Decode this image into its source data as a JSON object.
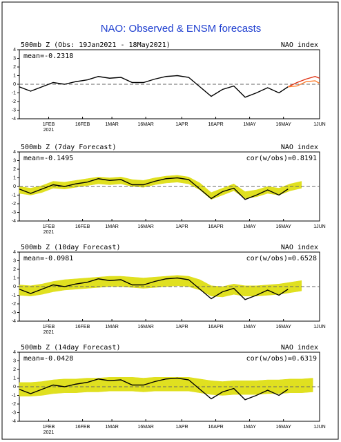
{
  "title": "NAO: Observed & ENSM forecasts",
  "chart_data": [
    {
      "type": "line",
      "title": "500mb Z (Obs: 19Jan2021 - 18May2021)",
      "right_label": "NAO index",
      "mean_label": "mean=-0.2318",
      "xlim": [
        "2021-01-19",
        "2021-06-01"
      ],
      "ylim": [
        -4,
        4
      ],
      "yticks": [
        4,
        3,
        2,
        1,
        0,
        -1,
        -2,
        -3,
        -4
      ],
      "zero_line": true,
      "xticks": [
        {
          "value": "2021-02-01",
          "label": "1FEB"
        },
        {
          "value": "2021-02-16",
          "label": "16FEB"
        },
        {
          "value": "2021-03-01",
          "label": "1MAR"
        },
        {
          "value": "2021-03-16",
          "label": "16MAR"
        },
        {
          "value": "2021-04-01",
          "label": "1APR"
        },
        {
          "value": "2021-04-16",
          "label": "16APR"
        },
        {
          "value": "2021-05-01",
          "label": "1MAY"
        },
        {
          "value": "2021-05-16",
          "label": "16MAY"
        },
        {
          "value": "2021-06-01",
          "label": "1JUN"
        }
      ],
      "year_label": "2021",
      "series": [
        {
          "color": "#000000",
          "x": [
            "2021-01-19",
            "2021-01-24",
            "2021-01-29",
            "2021-02-03",
            "2021-02-08",
            "2021-02-13",
            "2021-02-18",
            "2021-02-23",
            "2021-02-28",
            "2021-03-05",
            "2021-03-10",
            "2021-03-15",
            "2021-03-20",
            "2021-03-25",
            "2021-03-30",
            "2021-04-04",
            "2021-04-09",
            "2021-04-14",
            "2021-04-19",
            "2021-04-24",
            "2021-04-29",
            "2021-05-04",
            "2021-05-09",
            "2021-05-14",
            "2021-05-18"
          ],
          "values": [
            -0.3,
            -0.8,
            -0.3,
            0.2,
            0.0,
            0.3,
            0.5,
            0.9,
            0.7,
            0.8,
            0.2,
            0.2,
            0.6,
            0.9,
            1.0,
            0.8,
            -0.3,
            -1.4,
            -0.6,
            -0.2,
            -1.5,
            -1.0,
            -0.4,
            -1.0,
            -0.3
          ]
        },
        {
          "color": "#e03010",
          "x": [
            "2021-05-18",
            "2021-05-22",
            "2021-05-26",
            "2021-05-30",
            "2021-06-01"
          ],
          "values": [
            -0.3,
            0.2,
            0.6,
            0.9,
            0.7
          ]
        },
        {
          "color": "#ff8030",
          "x": [
            "2021-05-18",
            "2021-05-22",
            "2021-05-26",
            "2021-05-30",
            "2021-06-01"
          ],
          "values": [
            -0.3,
            -0.2,
            0.3,
            0.4,
            0.1
          ]
        }
      ]
    },
    {
      "type": "line",
      "title": "500mb Z (7day Forecast)",
      "right_label": "NAO index",
      "mean_label": "mean=-0.1495",
      "cor_label": "cor(w/obs)=0.8191",
      "xlim": [
        "2021-01-19",
        "2021-06-01"
      ],
      "ylim": [
        -4,
        4
      ],
      "yticks": [
        4,
        3,
        2,
        1,
        0,
        -1,
        -2,
        -3,
        -4
      ],
      "zero_line": true,
      "xticks": [
        {
          "value": "2021-02-01",
          "label": "1FEB"
        },
        {
          "value": "2021-02-16",
          "label": "16FEB"
        },
        {
          "value": "2021-03-01",
          "label": "1MAR"
        },
        {
          "value": "2021-03-16",
          "label": "16MAR"
        },
        {
          "value": "2021-04-01",
          "label": "1APR"
        },
        {
          "value": "2021-04-16",
          "label": "16APR"
        },
        {
          "value": "2021-05-01",
          "label": "1MAY"
        },
        {
          "value": "2021-05-16",
          "label": "16MAY"
        },
        {
          "value": "2021-06-01",
          "label": "1JUN"
        }
      ],
      "year_label": "2021",
      "band": {
        "color": "#e0e020",
        "x": [
          "2021-01-19",
          "2021-01-24",
          "2021-01-29",
          "2021-02-03",
          "2021-02-08",
          "2021-02-13",
          "2021-02-18",
          "2021-02-23",
          "2021-02-28",
          "2021-03-05",
          "2021-03-10",
          "2021-03-15",
          "2021-03-20",
          "2021-03-25",
          "2021-03-30",
          "2021-04-04",
          "2021-04-09",
          "2021-04-14",
          "2021-04-19",
          "2021-04-24",
          "2021-04-29",
          "2021-05-04",
          "2021-05-09",
          "2021-05-14",
          "2021-05-19",
          "2021-05-24"
        ],
        "upper": [
          0.0,
          -0.2,
          0.1,
          0.6,
          0.5,
          0.7,
          0.9,
          1.1,
          1.0,
          1.1,
          0.8,
          0.7,
          1.0,
          1.2,
          1.3,
          1.1,
          0.4,
          -0.7,
          -0.2,
          0.3,
          -0.6,
          -0.4,
          0.0,
          -0.2,
          0.3,
          0.6
        ],
        "lower": [
          -0.8,
          -1.0,
          -0.7,
          -0.2,
          -0.3,
          -0.1,
          0.1,
          0.3,
          0.2,
          0.3,
          0.0,
          -0.1,
          0.2,
          0.4,
          0.5,
          0.3,
          -0.4,
          -1.5,
          -1.0,
          -0.5,
          -1.4,
          -1.2,
          -0.8,
          -1.0,
          -0.5,
          -0.2
        ]
      },
      "series": [
        {
          "color": "#000000",
          "x": [
            "2021-01-19",
            "2021-01-24",
            "2021-01-29",
            "2021-02-03",
            "2021-02-08",
            "2021-02-13",
            "2021-02-18",
            "2021-02-23",
            "2021-02-28",
            "2021-03-05",
            "2021-03-10",
            "2021-03-15",
            "2021-03-20",
            "2021-03-25",
            "2021-03-30",
            "2021-04-04",
            "2021-04-09",
            "2021-04-14",
            "2021-04-19",
            "2021-04-24",
            "2021-04-29",
            "2021-05-04",
            "2021-05-09",
            "2021-05-14",
            "2021-05-18"
          ],
          "values": [
            -0.3,
            -0.8,
            -0.3,
            0.2,
            0.0,
            0.3,
            0.5,
            0.9,
            0.7,
            0.8,
            0.2,
            0.2,
            0.6,
            0.9,
            1.0,
            0.8,
            -0.3,
            -1.4,
            -0.6,
            -0.2,
            -1.5,
            -1.0,
            -0.4,
            -1.0,
            -0.3
          ]
        }
      ]
    },
    {
      "type": "line",
      "title": "500mb Z (10day Forecast)",
      "right_label": "NAO index",
      "mean_label": "mean=-0.0981",
      "cor_label": "cor(w/obs)=0.6528",
      "xlim": [
        "2021-01-19",
        "2021-06-01"
      ],
      "ylim": [
        -4,
        4
      ],
      "yticks": [
        4,
        3,
        2,
        1,
        0,
        -1,
        -2,
        -3,
        -4
      ],
      "zero_line": true,
      "xticks": [
        {
          "value": "2021-02-01",
          "label": "1FEB"
        },
        {
          "value": "2021-02-16",
          "label": "16FEB"
        },
        {
          "value": "2021-03-01",
          "label": "1MAR"
        },
        {
          "value": "2021-03-16",
          "label": "16MAR"
        },
        {
          "value": "2021-04-01",
          "label": "1APR"
        },
        {
          "value": "2021-04-16",
          "label": "16APR"
        },
        {
          "value": "2021-05-01",
          "label": "1MAY"
        },
        {
          "value": "2021-05-16",
          "label": "16MAY"
        },
        {
          "value": "2021-06-01",
          "label": "1JUN"
        }
      ],
      "year_label": "2021",
      "band": {
        "color": "#e0e020",
        "x": [
          "2021-01-19",
          "2021-01-24",
          "2021-01-29",
          "2021-02-03",
          "2021-02-08",
          "2021-02-13",
          "2021-02-18",
          "2021-02-23",
          "2021-02-28",
          "2021-03-05",
          "2021-03-10",
          "2021-03-15",
          "2021-03-20",
          "2021-03-25",
          "2021-03-30",
          "2021-04-04",
          "2021-04-09",
          "2021-04-14",
          "2021-04-19",
          "2021-04-24",
          "2021-04-29",
          "2021-05-04",
          "2021-05-09",
          "2021-05-14",
          "2021-05-19",
          "2021-05-24"
        ],
        "upper": [
          0.2,
          0.1,
          0.3,
          0.6,
          0.8,
          0.9,
          1.0,
          1.1,
          1.2,
          1.2,
          1.1,
          1.0,
          1.1,
          1.2,
          1.3,
          1.2,
          0.8,
          0.1,
          0.0,
          0.3,
          0.1,
          0.1,
          0.2,
          0.3,
          0.5,
          0.7
        ],
        "lower": [
          -1.0,
          -1.1,
          -0.9,
          -0.6,
          -0.4,
          -0.3,
          -0.2,
          -0.1,
          0.0,
          0.0,
          -0.1,
          -0.2,
          -0.1,
          0.0,
          0.1,
          0.0,
          -0.4,
          -1.1,
          -1.2,
          -0.9,
          -1.1,
          -1.1,
          -1.0,
          -0.9,
          -0.7,
          -0.5
        ]
      },
      "series": [
        {
          "color": "#000000",
          "x": [
            "2021-01-19",
            "2021-01-24",
            "2021-01-29",
            "2021-02-03",
            "2021-02-08",
            "2021-02-13",
            "2021-02-18",
            "2021-02-23",
            "2021-02-28",
            "2021-03-05",
            "2021-03-10",
            "2021-03-15",
            "2021-03-20",
            "2021-03-25",
            "2021-03-30",
            "2021-04-04",
            "2021-04-09",
            "2021-04-14",
            "2021-04-19",
            "2021-04-24",
            "2021-04-29",
            "2021-05-04",
            "2021-05-09",
            "2021-05-14",
            "2021-05-18"
          ],
          "values": [
            -0.3,
            -0.8,
            -0.3,
            0.2,
            0.0,
            0.3,
            0.5,
            0.9,
            0.7,
            0.8,
            0.2,
            0.2,
            0.6,
            0.9,
            1.0,
            0.8,
            -0.3,
            -1.4,
            -0.6,
            -0.2,
            -1.5,
            -1.0,
            -0.4,
            -1.0,
            -0.3
          ]
        }
      ]
    },
    {
      "type": "line",
      "title": "500mb Z (14day Forecast)",
      "right_label": "NAO index",
      "mean_label": "mean=-0.0428",
      "cor_label": "cor(w/obs)=0.6319",
      "xlim": [
        "2021-01-19",
        "2021-06-01"
      ],
      "ylim": [
        -4,
        4
      ],
      "yticks": [
        4,
        3,
        2,
        1,
        0,
        -1,
        -2,
        -3,
        -4
      ],
      "zero_line": true,
      "xticks": [
        {
          "value": "2021-02-01",
          "label": "1FEB"
        },
        {
          "value": "2021-02-16",
          "label": "16FEB"
        },
        {
          "value": "2021-03-01",
          "label": "1MAR"
        },
        {
          "value": "2021-03-16",
          "label": "16MAR"
        },
        {
          "value": "2021-04-01",
          "label": "1APR"
        },
        {
          "value": "2021-04-16",
          "label": "16APR"
        },
        {
          "value": "2021-05-01",
          "label": "1MAY"
        },
        {
          "value": "2021-05-16",
          "label": "16MAY"
        },
        {
          "value": "2021-06-01",
          "label": "1JUN"
        }
      ],
      "year_label": "2021",
      "band": {
        "color": "#e0e020",
        "x": [
          "2021-01-19",
          "2021-01-24",
          "2021-01-29",
          "2021-02-03",
          "2021-02-08",
          "2021-02-13",
          "2021-02-18",
          "2021-02-23",
          "2021-02-28",
          "2021-03-05",
          "2021-03-10",
          "2021-03-15",
          "2021-03-20",
          "2021-03-25",
          "2021-03-30",
          "2021-04-04",
          "2021-04-09",
          "2021-04-14",
          "2021-04-19",
          "2021-04-24",
          "2021-04-29",
          "2021-05-04",
          "2021-05-09",
          "2021-05-14",
          "2021-05-19",
          "2021-05-24",
          "2021-05-29"
        ],
        "upper": [
          0.5,
          0.5,
          0.6,
          0.8,
          0.9,
          0.9,
          1.0,
          1.0,
          1.1,
          1.1,
          1.1,
          1.0,
          1.1,
          1.1,
          1.1,
          1.1,
          0.9,
          0.7,
          0.6,
          0.7,
          0.7,
          0.7,
          0.8,
          0.8,
          0.9,
          0.9,
          1.0
        ],
        "lower": [
          -1.1,
          -1.1,
          -1.0,
          -0.8,
          -0.7,
          -0.7,
          -0.6,
          -0.6,
          -0.5,
          -0.5,
          -0.5,
          -0.6,
          -0.5,
          -0.5,
          -0.5,
          -0.5,
          -0.7,
          -0.9,
          -1.0,
          -0.9,
          -0.9,
          -0.9,
          -0.8,
          -0.8,
          -0.7,
          -0.7,
          -0.6
        ]
      },
      "series": [
        {
          "color": "#000000",
          "x": [
            "2021-01-19",
            "2021-01-24",
            "2021-01-29",
            "2021-02-03",
            "2021-02-08",
            "2021-02-13",
            "2021-02-18",
            "2021-02-23",
            "2021-02-28",
            "2021-03-05",
            "2021-03-10",
            "2021-03-15",
            "2021-03-20",
            "2021-03-25",
            "2021-03-30",
            "2021-04-04",
            "2021-04-09",
            "2021-04-14",
            "2021-04-19",
            "2021-04-24",
            "2021-04-29",
            "2021-05-04",
            "2021-05-09",
            "2021-05-14",
            "2021-05-18"
          ],
          "values": [
            -0.3,
            -0.8,
            -0.3,
            0.2,
            0.0,
            0.3,
            0.5,
            0.9,
            0.7,
            0.8,
            0.2,
            0.2,
            0.6,
            0.9,
            1.0,
            0.8,
            -0.3,
            -1.4,
            -0.6,
            -0.2,
            -1.5,
            -1.0,
            -0.4,
            -1.0,
            -0.3
          ]
        }
      ]
    }
  ]
}
